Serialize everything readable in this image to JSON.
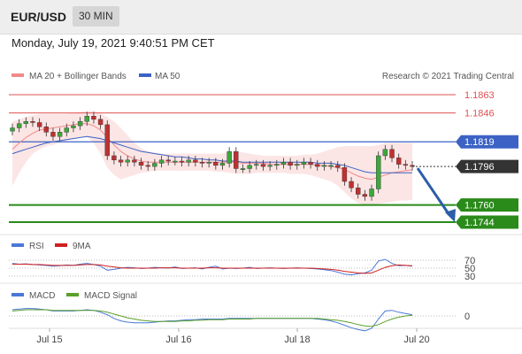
{
  "header": {
    "pair": "EUR/USD",
    "timeframe": "30 MIN"
  },
  "datetime": "Monday, July 19, 2021 9:40:51 PM CET",
  "legend": {
    "bb": "MA 20 + Bollinger Bands",
    "ma50": "MA 50",
    "credit": "Research © 2021 Trading Central"
  },
  "colors": {
    "resistance": "#e05252",
    "support": "#2a8a1a",
    "pivot": "#3b62c4",
    "price": "#333333",
    "arrow": "#2c5ea8",
    "bb_fill": "#fbe0e0"
  },
  "chart_data": [
    {
      "type": "line",
      "title": "",
      "x_ticks": [
        "Jul 15",
        "Jul 16",
        "Jul 18",
        "Jul 20"
      ],
      "levels": {
        "resistance": [
          "1.1863",
          "1.1846"
        ],
        "pivot": "1.1819",
        "current": "1.1796",
        "support": [
          "1.1760",
          "1.1744"
        ]
      },
      "ylim": [
        1.173,
        1.188
      ],
      "close": [
        1.1832,
        1.1836,
        1.1838,
        1.1837,
        1.1833,
        1.1828,
        1.1824,
        1.1828,
        1.1832,
        1.1834,
        1.1838,
        1.1843,
        1.184,
        1.1835,
        1.1806,
        1.1802,
        1.18,
        1.1802,
        1.18,
        1.1797,
        1.1796,
        1.1799,
        1.1802,
        1.1801,
        1.1801,
        1.18,
        1.1802,
        1.18,
        1.1799,
        1.18,
        1.1797,
        1.1799,
        1.181,
        1.1794,
        1.1794,
        1.1797,
        1.1798,
        1.1796,
        1.1797,
        1.1798,
        1.18,
        1.1797,
        1.1798,
        1.18,
        1.1798,
        1.1796,
        1.1797,
        1.1797,
        1.1795,
        1.1782,
        1.1776,
        1.177,
        1.1768,
        1.1775,
        1.1806,
        1.1812,
        1.1804,
        1.1798,
        1.1797,
        1.1796
      ],
      "ma50": [
        1.1808,
        1.181,
        1.1812,
        1.1814,
        1.1816,
        1.1818,
        1.1819,
        1.182,
        1.1821,
        1.1822,
        1.1823,
        1.1824,
        1.1823,
        1.1822,
        1.182,
        1.1818,
        1.1816,
        1.1814,
        1.1812,
        1.181,
        1.1809,
        1.1808,
        1.1807,
        1.1806,
        1.1805,
        1.1805,
        1.1804,
        1.1803,
        1.1803,
        1.1802,
        1.1802,
        1.1801,
        1.1801,
        1.1801,
        1.18,
        1.18,
        1.18,
        1.18,
        1.18,
        1.18,
        1.18,
        1.18,
        1.18,
        1.18,
        1.18,
        1.1799,
        1.1799,
        1.1799,
        1.1798,
        1.1797,
        1.1795,
        1.1793,
        1.1791,
        1.179,
        1.179,
        1.179,
        1.179,
        1.179,
        1.179,
        1.179
      ],
      "ma20": [
        1.1812,
        1.1818,
        1.1823,
        1.1827,
        1.183,
        1.1831,
        1.1832,
        1.1833,
        1.1834,
        1.1835,
        1.1836,
        1.1836,
        1.1834,
        1.183,
        1.1823,
        1.1816,
        1.181,
        1.1806,
        1.1803,
        1.1801,
        1.18,
        1.18,
        1.18,
        1.18,
        1.18,
        1.18,
        1.18,
        1.18,
        1.18,
        1.18,
        1.18,
        1.18,
        1.18,
        1.18,
        1.1799,
        1.1799,
        1.1799,
        1.1799,
        1.1798,
        1.1798,
        1.1798,
        1.1798,
        1.1798,
        1.1798,
        1.1798,
        1.1797,
        1.1797,
        1.1796,
        1.1795,
        1.1793,
        1.179,
        1.1787,
        1.1785,
        1.1784,
        1.1786,
        1.1788,
        1.179,
        1.1791,
        1.1792,
        1.1793
      ],
      "bb_upper": [
        1.1838,
        1.184,
        1.1842,
        1.1844,
        1.1845,
        1.1845,
        1.1845,
        1.1845,
        1.1845,
        1.1846,
        1.1847,
        1.1848,
        1.1848,
        1.1846,
        1.1842,
        1.1838,
        1.1832,
        1.1825,
        1.1818,
        1.1813,
        1.181,
        1.1809,
        1.1808,
        1.1808,
        1.1808,
        1.1808,
        1.1808,
        1.1808,
        1.1808,
        1.1808,
        1.1808,
        1.1808,
        1.181,
        1.181,
        1.1809,
        1.1808,
        1.1807,
        1.1806,
        1.1806,
        1.1806,
        1.1806,
        1.1806,
        1.1806,
        1.1807,
        1.1807,
        1.1808,
        1.181,
        1.1812,
        1.1814,
        1.1815,
        1.1815,
        1.1815,
        1.1815,
        1.1815,
        1.1816,
        1.1818,
        1.1818,
        1.1818,
        1.1818,
        1.1818
      ],
      "bb_lower": [
        1.1778,
        1.179,
        1.18,
        1.1808,
        1.1812,
        1.1815,
        1.1816,
        1.1818,
        1.182,
        1.1822,
        1.1823,
        1.1824,
        1.1818,
        1.1808,
        1.1795,
        1.1788,
        1.1784,
        1.1786,
        1.1788,
        1.179,
        1.1791,
        1.1792,
        1.1792,
        1.1792,
        1.1792,
        1.1792,
        1.1792,
        1.1792,
        1.1792,
        1.1792,
        1.1791,
        1.1791,
        1.179,
        1.1789,
        1.1789,
        1.1789,
        1.179,
        1.179,
        1.179,
        1.179,
        1.179,
        1.1789,
        1.1789,
        1.1789,
        1.1788,
        1.1786,
        1.1784,
        1.1782,
        1.1778,
        1.1772,
        1.1766,
        1.1762,
        1.176,
        1.176,
        1.1761,
        1.1762,
        1.1763,
        1.1764,
        1.1764,
        1.1765
      ]
    },
    {
      "type": "line",
      "title": "",
      "legend": [
        "RSI",
        "9MA"
      ],
      "levels": [
        "70",
        "50",
        "30"
      ],
      "ylim": [
        20,
        80
      ],
      "rsi": [
        62,
        60,
        61,
        59,
        58,
        57,
        55,
        56,
        58,
        57,
        60,
        62,
        59,
        55,
        45,
        47,
        50,
        52,
        51,
        49,
        50,
        52,
        51,
        50,
        53,
        49,
        50,
        51,
        48,
        52,
        55,
        48,
        50,
        49,
        50,
        52,
        49,
        50,
        51,
        50,
        49,
        50,
        51,
        50,
        49,
        48,
        46,
        44,
        40,
        35,
        33,
        36,
        38,
        45,
        68,
        72,
        62,
        56,
        57,
        55
      ],
      "rsi_ma": [
        60,
        60,
        60,
        59,
        59,
        58,
        57,
        57,
        57,
        57,
        58,
        59,
        59,
        58,
        55,
        53,
        51,
        50,
        50,
        50,
        50,
        50,
        51,
        51,
        51,
        50,
        50,
        50,
        50,
        51,
        51,
        50,
        50,
        50,
        50,
        50,
        50,
        50,
        50,
        50,
        50,
        50,
        50,
        50,
        50,
        49,
        48,
        47,
        45,
        42,
        40,
        38,
        37,
        38,
        45,
        52,
        56,
        58,
        57,
        56
      ]
    },
    {
      "type": "line",
      "title": "",
      "legend": [
        "MACD",
        "MACD Signal"
      ],
      "levels": [
        "0"
      ],
      "ylim": [
        -0.004,
        0.003
      ],
      "macd": [
        0.001,
        0.0011,
        0.0012,
        0.0012,
        0.0011,
        0.001,
        0.0008,
        0.0008,
        0.0008,
        0.0008,
        0.0009,
        0.001,
        0.0009,
        0.0006,
        0.0002,
        -0.0004,
        -0.0008,
        -0.001,
        -0.0011,
        -0.0011,
        -0.0011,
        -0.001,
        -0.0009,
        -0.0008,
        -0.0008,
        -0.0007,
        -0.0006,
        -0.0006,
        -0.0005,
        -0.0005,
        -0.0005,
        -0.0005,
        -0.0004,
        -0.0004,
        -0.0004,
        -0.0004,
        -0.0004,
        -0.0004,
        -0.0004,
        -0.0004,
        -0.0004,
        -0.0004,
        -0.0004,
        -0.0004,
        -0.0004,
        -0.0005,
        -0.0006,
        -0.0008,
        -0.0011,
        -0.0015,
        -0.0019,
        -0.0022,
        -0.0024,
        -0.002,
        -0.0005,
        0.0008,
        0.0009,
        0.0006,
        0.0004,
        0.0002
      ],
      "signal": [
        0.0008,
        0.0009,
        0.001,
        0.001,
        0.001,
        0.001,
        0.0009,
        0.0009,
        0.0009,
        0.0009,
        0.0009,
        0.0009,
        0.0009,
        0.0008,
        0.0006,
        0.0003,
        0.0,
        -0.0003,
        -0.0005,
        -0.0007,
        -0.0008,
        -0.0009,
        -0.0009,
        -0.0009,
        -0.0009,
        -0.0008,
        -0.0008,
        -0.0007,
        -0.0007,
        -0.0006,
        -0.0006,
        -0.0006,
        -0.0005,
        -0.0005,
        -0.0005,
        -0.0005,
        -0.0004,
        -0.0004,
        -0.0004,
        -0.0004,
        -0.0004,
        -0.0004,
        -0.0004,
        -0.0004,
        -0.0004,
        -0.0004,
        -0.0005,
        -0.0006,
        -0.0007,
        -0.0009,
        -0.0011,
        -0.0014,
        -0.0016,
        -0.0017,
        -0.0014,
        -0.0009,
        -0.0005,
        -0.0002,
        0.0,
        0.0001
      ]
    }
  ]
}
